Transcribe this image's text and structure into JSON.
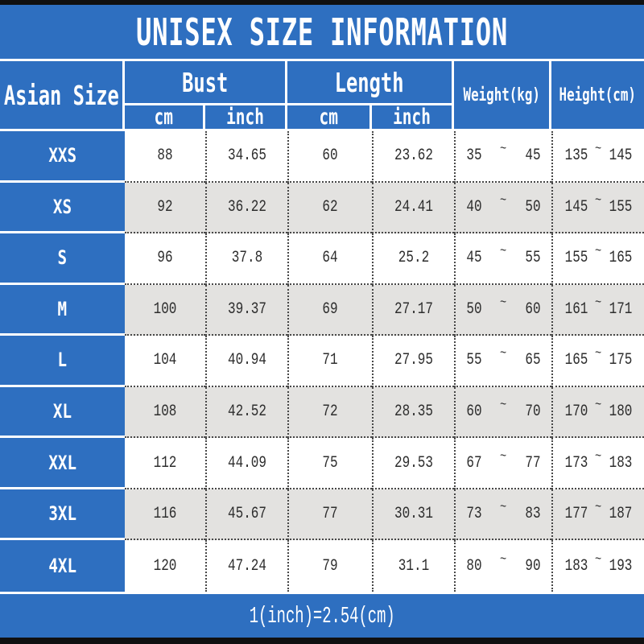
{
  "title": "UNISEX SIZE INFORMATION",
  "footer_note": "1(inch)=2.54(cm)",
  "table": {
    "corner": "Asian Size",
    "bust_label": "Bust",
    "length_label": "Length",
    "cm_label": "cm",
    "inch_label": "inch",
    "weight_label": "Weight(kg)",
    "height_label": "Height(cm)",
    "tilde": "~",
    "rows": [
      {
        "size": "XXS",
        "bust_cm": "88",
        "bust_inch": "34.65",
        "len_cm": "60",
        "len_inch": "23.62",
        "weight_min": "35",
        "weight_max": "45",
        "height_min": "135",
        "height_max": "145"
      },
      {
        "size": "XS",
        "bust_cm": "92",
        "bust_inch": "36.22",
        "len_cm": "62",
        "len_inch": "24.41",
        "weight_min": "40",
        "weight_max": "50",
        "height_min": "145",
        "height_max": "155"
      },
      {
        "size": "S",
        "bust_cm": "96",
        "bust_inch": "37.8",
        "len_cm": "64",
        "len_inch": "25.2",
        "weight_min": "45",
        "weight_max": "55",
        "height_min": "155",
        "height_max": "165"
      },
      {
        "size": "M",
        "bust_cm": "100",
        "bust_inch": "39.37",
        "len_cm": "69",
        "len_inch": "27.17",
        "weight_min": "50",
        "weight_max": "60",
        "height_min": "161",
        "height_max": "171"
      },
      {
        "size": "L",
        "bust_cm": "104",
        "bust_inch": "40.94",
        "len_cm": "71",
        "len_inch": "27.95",
        "weight_min": "55",
        "weight_max": "65",
        "height_min": "165",
        "height_max": "175"
      },
      {
        "size": "XL",
        "bust_cm": "108",
        "bust_inch": "42.52",
        "len_cm": "72",
        "len_inch": "28.35",
        "weight_min": "60",
        "weight_max": "70",
        "height_min": "170",
        "height_max": "180"
      },
      {
        "size": "XXL",
        "bust_cm": "112",
        "bust_inch": "44.09",
        "len_cm": "75",
        "len_inch": "29.53",
        "weight_min": "67",
        "weight_max": "77",
        "height_min": "173",
        "height_max": "183"
      },
      {
        "size": "3XL",
        "bust_cm": "116",
        "bust_inch": "45.67",
        "len_cm": "77",
        "len_inch": "30.31",
        "weight_min": "73",
        "weight_max": "83",
        "height_min": "177",
        "height_max": "187"
      },
      {
        "size": "4XL",
        "bust_cm": "120",
        "bust_inch": "47.24",
        "len_cm": "79",
        "len_inch": "31.1",
        "weight_min": "80",
        "weight_max": "90",
        "height_min": "183",
        "height_max": "193"
      }
    ]
  },
  "chart_data": {
    "type": "table",
    "title": "UNISEX SIZE INFORMATION",
    "columns": [
      "Asian Size",
      "Bust cm",
      "Bust inch",
      "Length cm",
      "Length inch",
      "Weight(kg)",
      "Height(cm)"
    ],
    "rows": [
      [
        "XXS",
        "88",
        "34.65",
        "60",
        "23.62",
        "35 ~ 45",
        "135 ~ 145"
      ],
      [
        "XS",
        "92",
        "36.22",
        "62",
        "24.41",
        "40 ~ 50",
        "145 ~ 155"
      ],
      [
        "S",
        "96",
        "37.8",
        "64",
        "25.2",
        "45 ~ 55",
        "155 ~ 165"
      ],
      [
        "M",
        "100",
        "39.37",
        "69",
        "27.17",
        "50 ~ 60",
        "161 ~ 171"
      ],
      [
        "L",
        "104",
        "40.94",
        "71",
        "27.95",
        "55 ~ 65",
        "165 ~ 175"
      ],
      [
        "XL",
        "108",
        "42.52",
        "72",
        "28.35",
        "60 ~ 70",
        "170 ~ 180"
      ],
      [
        "XXL",
        "112",
        "44.09",
        "75",
        "29.53",
        "67 ~ 77",
        "173 ~ 183"
      ],
      [
        "3XL",
        "116",
        "45.67",
        "77",
        "30.31",
        "73 ~ 83",
        "177 ~ 187"
      ],
      [
        "4XL",
        "120",
        "47.24",
        "79",
        "31.1",
        "80 ~ 90",
        "183 ~ 193"
      ]
    ],
    "footnote": "1(inch)=2.54(cm)"
  },
  "colors": {
    "blue": "#2e6fc0",
    "row_alt": "#e3e2e0",
    "bar_black": "#101010",
    "dotted_line": "#474747",
    "data_text": "#2d2d2d",
    "header_text": "#ffffff"
  }
}
